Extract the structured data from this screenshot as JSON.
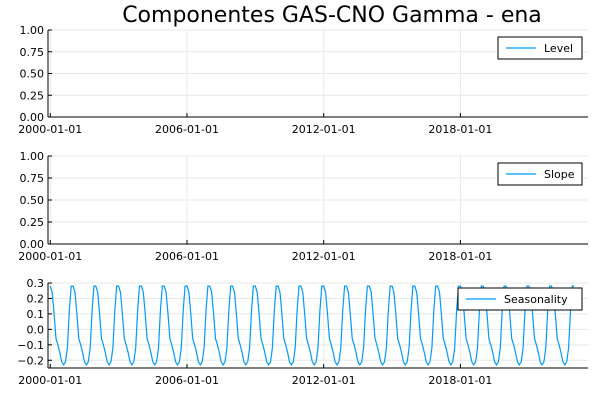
{
  "title": "Componentes GAS-CNO Gamma - ena",
  "chart_data": [
    {
      "type": "line",
      "name": "level",
      "series": [
        {
          "name": "Level",
          "values": []
        }
      ],
      "x": [],
      "ylim": [
        0,
        1
      ],
      "yticks": [
        "0.00",
        "0.25",
        "0.50",
        "0.75",
        "1.00"
      ],
      "ytick_values": [
        0,
        0.25,
        0.5,
        0.75,
        1.0
      ],
      "xticks": [
        "2000-01-01",
        "2006-01-01",
        "2012-01-01",
        "2018-01-01"
      ],
      "xtick_years": [
        2000,
        2006,
        2012,
        2018
      ],
      "xlim_years": [
        1999.9,
        2023.6
      ],
      "grid": true,
      "legend": "top-right"
    },
    {
      "type": "line",
      "name": "slope",
      "series": [
        {
          "name": "Slope",
          "values": []
        }
      ],
      "x": [],
      "ylim": [
        0,
        1
      ],
      "yticks": [
        "0.00",
        "0.25",
        "0.50",
        "0.75",
        "1.00"
      ],
      "ytick_values": [
        0,
        0.25,
        0.5,
        0.75,
        1.0
      ],
      "xticks": [
        "2000-01-01",
        "2006-01-01",
        "2012-01-01",
        "2018-01-01"
      ],
      "xtick_years": [
        2000,
        2006,
        2012,
        2018
      ],
      "xlim_years": [
        1999.9,
        2023.6
      ],
      "grid": true,
      "legend": "top-right"
    },
    {
      "type": "line",
      "name": "seasonality",
      "series": [
        {
          "name": "Seasonality",
          "period_months": 12,
          "cycle_values": [
            0.28,
            0.24,
            0.1,
            -0.06,
            -0.1,
            -0.15,
            -0.21,
            -0.23,
            -0.21,
            -0.12,
            0.12,
            0.28
          ],
          "start": "2000-01-01",
          "end": "2023-01-01"
        }
      ],
      "ylim": [
        -0.25,
        0.3
      ],
      "yticks": [
        "−0.2",
        "−0.1",
        "0.0",
        "0.1",
        "0.2",
        "0.3"
      ],
      "ytick_values": [
        -0.2,
        -0.1,
        0.0,
        0.1,
        0.2,
        0.3
      ],
      "xticks": [
        "2000-01-01",
        "2006-01-01",
        "2012-01-01",
        "2018-01-01"
      ],
      "xtick_years": [
        2000,
        2006,
        2012,
        2018
      ],
      "xlim_years": [
        1999.9,
        2023.6
      ],
      "grid": true,
      "legend": "top-right"
    }
  ],
  "colors": {
    "series": "#009AFA",
    "axis": "#000000",
    "grid": "#e8e8e8"
  }
}
